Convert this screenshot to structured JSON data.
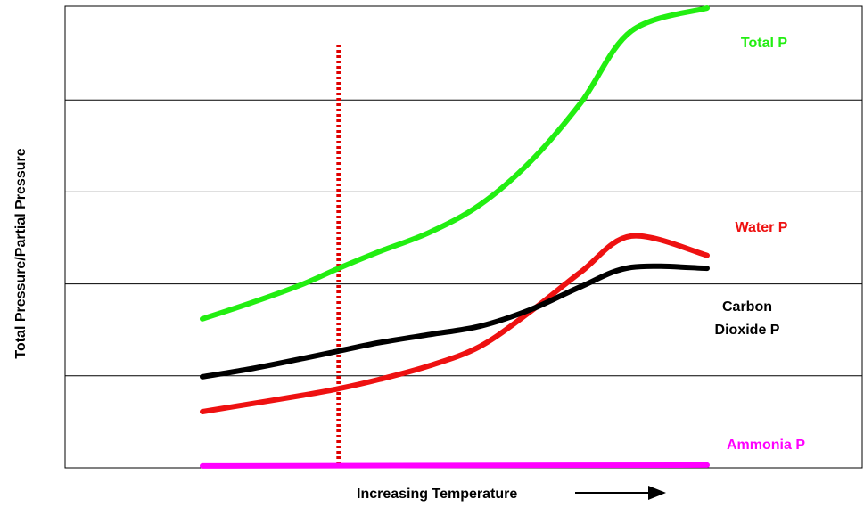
{
  "chart_data": {
    "type": "line",
    "title": "",
    "xlabel": "Increasing Temperature",
    "ylabel": "Total Pressure/Partial Pressure",
    "xlim": [
      0,
      10
    ],
    "ylim": [
      0,
      5
    ],
    "grid": "horizontal",
    "gridlines_y": [
      1,
      2,
      3,
      4
    ],
    "legend": "labels at line ends (right)",
    "marker_line": {
      "x": 2.7,
      "style": "dotted",
      "color": "#e00000"
    },
    "series": [
      {
        "name": "Total P",
        "color": "#22ee11",
        "x": [
          0,
          1,
          2,
          2.7,
          3.5,
          4.5,
          5.5,
          6.5,
          7.5,
          8.5,
          10
        ],
        "y": [
          1.62,
          1.8,
          2.0,
          2.17,
          2.35,
          2.56,
          2.86,
          3.33,
          3.97,
          4.75,
          5.0
        ]
      },
      {
        "name": "Water P",
        "color": "#ee1111",
        "x": [
          0,
          1,
          2,
          2.7,
          3.5,
          4.5,
          5.5,
          6.5,
          7.5,
          8.5,
          10
        ],
        "y": [
          0.61,
          0.7,
          0.79,
          0.86,
          0.96,
          1.11,
          1.32,
          1.7,
          2.13,
          2.52,
          2.31
        ]
      },
      {
        "name": "Carbon Dioxide P",
        "color": "#000000",
        "x": [
          0,
          1,
          2,
          2.7,
          3.5,
          4.5,
          5.5,
          6.5,
          7.5,
          8.5,
          10
        ],
        "y": [
          0.99,
          1.08,
          1.19,
          1.27,
          1.36,
          1.45,
          1.54,
          1.72,
          1.97,
          2.18,
          2.17
        ]
      },
      {
        "name": "Ammonia P",
        "color": "#ff00ff",
        "x": [
          0,
          10
        ],
        "y": [
          0.02,
          0.03
        ]
      }
    ],
    "label_text": {
      "total": "Total P",
      "water": "Water P",
      "co2_line1": "Carbon",
      "co2_line2": "Dioxide P",
      "ammonia": "Ammonia P"
    }
  }
}
